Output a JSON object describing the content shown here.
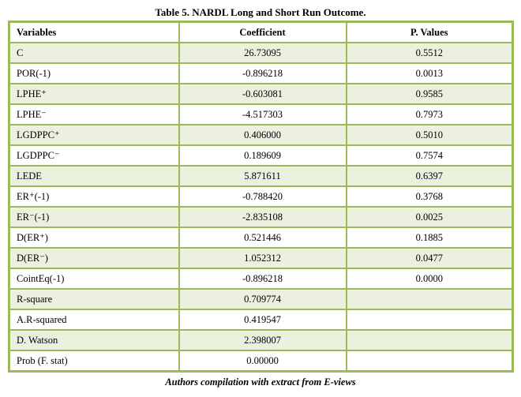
{
  "title": "Table 5. NARDL Long and Short Run Outcome.",
  "table": {
    "columns": [
      "Variables",
      "Coefficient",
      "P. Values"
    ],
    "rows": [
      {
        "variable": "C",
        "coefficient": "26.73095",
        "p_value": "0.5512"
      },
      {
        "variable": "POR(-1)",
        "coefficient": "-0.896218",
        "p_value": "0.0013"
      },
      {
        "variable": "LPHE⁺",
        "coefficient": "-0.603081",
        "p_value": "0.9585"
      },
      {
        "variable": "LPHE⁻",
        "coefficient": "-4.517303",
        "p_value": "0.7973"
      },
      {
        "variable": "LGDPPC⁺",
        "coefficient": "0.406000",
        "p_value": "0.5010"
      },
      {
        "variable": "LGDPPC⁻",
        "coefficient": "0.189609",
        "p_value": "0.7574"
      },
      {
        "variable": "LEDE",
        "coefficient": "5.871611",
        "p_value": "0.6397"
      },
      {
        "variable": "ER⁺(-1)",
        "coefficient": "-0.788420",
        "p_value": "0.3768"
      },
      {
        "variable": "ER⁻(-1)",
        "coefficient": "-2.835108",
        "p_value": "0.0025"
      },
      {
        "variable": "D(ER⁺)",
        "coefficient": "0.521446",
        "p_value": "0.1885"
      },
      {
        "variable": "D(ER⁻)",
        "coefficient": "1.052312",
        "p_value": "0.0477"
      },
      {
        "variable": "CointEq(-1)",
        "coefficient": "-0.896218",
        "p_value": "0.0000"
      },
      {
        "variable": "R-square",
        "coefficient": "0.709774",
        "p_value": ""
      },
      {
        "variable": "A.R-squared",
        "coefficient": "0.419547",
        "p_value": ""
      },
      {
        "variable": "D. Watson",
        "coefficient": "2.398007",
        "p_value": ""
      },
      {
        "variable": "Prob (F. stat)",
        "coefficient": "0.00000",
        "p_value": ""
      }
    ]
  },
  "caption": "Authors compilation with extract from E-views",
  "colors": {
    "border": "#9BBB59",
    "row_shade": "#EBF1DE",
    "text": "#000000"
  }
}
